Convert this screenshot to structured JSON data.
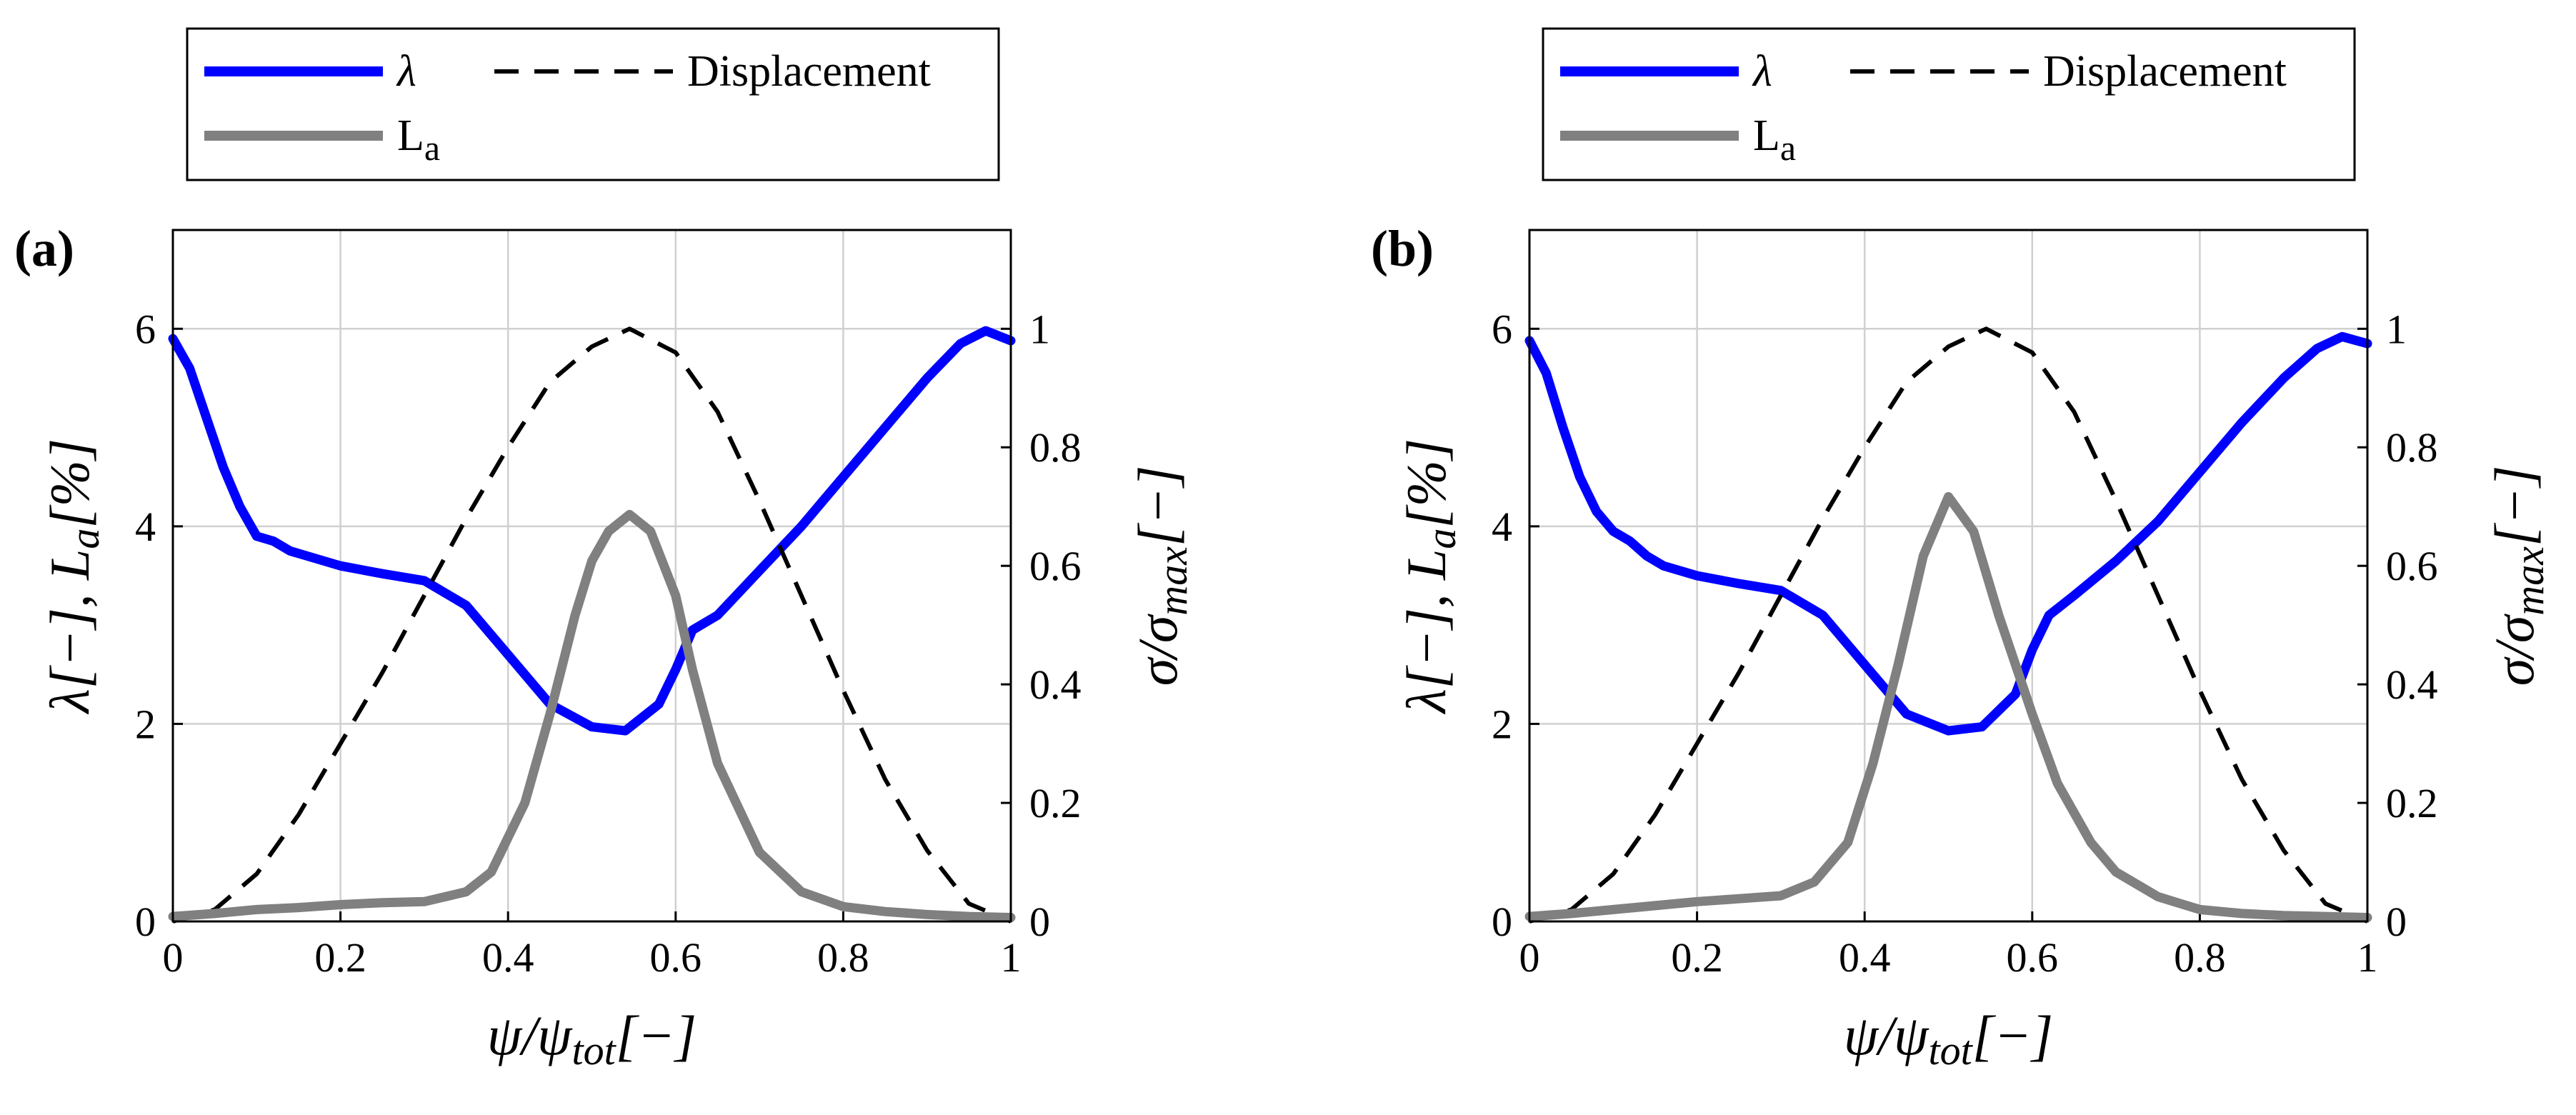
{
  "chart_data": [
    {
      "type": "line",
      "panel_label": "(a)",
      "xlabel": "ψ/ψ_tot[−]",
      "xlabel_parts": [
        "ψ/ψ",
        "tot",
        "[−]"
      ],
      "ylabel_left": "λ[−], L_a[%]",
      "ylabel_left_parts": [
        "λ[−],  L",
        "a",
        "[%]"
      ],
      "ylabel_right": "σ/σ_max[−]",
      "ylabel_right_parts": [
        "σ/σ",
        "max",
        "[−]"
      ],
      "xlim": [
        0,
        1
      ],
      "ylim_left": [
        0,
        7
      ],
      "ylim_right": [
        0,
        1.1667
      ],
      "xticks": [
        "0",
        "0.2",
        "0.4",
        "0.6",
        "0.8",
        "1"
      ],
      "yticks_left": [
        "0",
        "2",
        "4",
        "6"
      ],
      "yticks_right": [
        "0",
        "0.2",
        "0.4",
        "0.6",
        "0.8",
        "1"
      ],
      "legend": [
        {
          "name": "λ",
          "color": "#0000ff",
          "style": "solid"
        },
        {
          "name": "Displacement",
          "color": "#000000",
          "style": "dashed"
        },
        {
          "name": "L",
          "sub": "a",
          "color": "#808080",
          "style": "solid"
        }
      ],
      "series": [
        {
          "name": "λ",
          "axis": "left",
          "color": "#0000ff",
          "style": "solid",
          "x": [
            0,
            0.02,
            0.04,
            0.06,
            0.08,
            0.1,
            0.12,
            0.14,
            0.16,
            0.2,
            0.25,
            0.3,
            0.35,
            0.4,
            0.45,
            0.5,
            0.54,
            0.58,
            0.6,
            0.62,
            0.65,
            0.7,
            0.75,
            0.8,
            0.85,
            0.9,
            0.94,
            0.97,
            1.0
          ],
          "y": [
            5.9,
            5.6,
            5.1,
            4.6,
            4.2,
            3.9,
            3.85,
            3.75,
            3.7,
            3.6,
            3.52,
            3.45,
            3.2,
            2.7,
            2.2,
            1.97,
            1.93,
            2.2,
            2.55,
            2.95,
            3.1,
            3.55,
            4.0,
            4.5,
            5.0,
            5.5,
            5.85,
            5.98,
            5.88
          ]
        },
        {
          "name": "Displacement",
          "axis": "right",
          "color": "#000000",
          "style": "dashed",
          "x": [
            0,
            0.05,
            0.1,
            0.15,
            0.2,
            0.25,
            0.3,
            0.35,
            0.4,
            0.45,
            0.5,
            0.545,
            0.6,
            0.65,
            0.7,
            0.75,
            0.8,
            0.85,
            0.9,
            0.95,
            1.0
          ],
          "y": [
            0,
            0.02,
            0.08,
            0.18,
            0.3,
            0.42,
            0.55,
            0.68,
            0.8,
            0.91,
            0.97,
            1.0,
            0.96,
            0.86,
            0.71,
            0.55,
            0.39,
            0.24,
            0.12,
            0.03,
            0
          ]
        },
        {
          "name": "L_a",
          "axis": "left",
          "color": "#808080",
          "style": "solid",
          "x": [
            0,
            0.05,
            0.1,
            0.15,
            0.2,
            0.25,
            0.3,
            0.35,
            0.38,
            0.42,
            0.45,
            0.48,
            0.5,
            0.52,
            0.545,
            0.57,
            0.6,
            0.62,
            0.65,
            0.7,
            0.75,
            0.8,
            0.85,
            0.9,
            0.95,
            1.0
          ],
          "y": [
            0.05,
            0.08,
            0.12,
            0.14,
            0.17,
            0.19,
            0.2,
            0.3,
            0.5,
            1.2,
            2.1,
            3.1,
            3.65,
            3.95,
            4.12,
            3.95,
            3.3,
            2.55,
            1.6,
            0.7,
            0.3,
            0.15,
            0.1,
            0.07,
            0.05,
            0.04
          ]
        }
      ]
    },
    {
      "type": "line",
      "panel_label": "(b)",
      "xlabel": "ψ/ψ_tot[−]",
      "xlabel_parts": [
        "ψ/ψ",
        "tot",
        "[−]"
      ],
      "ylabel_left": "λ[−], L_a[%]",
      "ylabel_left_parts": [
        "λ[−],  L",
        "a",
        "[%]"
      ],
      "ylabel_right": "σ/σ_max[−]",
      "ylabel_right_parts": [
        "σ/σ",
        "max",
        "[−]"
      ],
      "xlim": [
        0,
        1
      ],
      "ylim_left": [
        0,
        7
      ],
      "ylim_right": [
        0,
        1.1667
      ],
      "xticks": [
        "0",
        "0.2",
        "0.4",
        "0.6",
        "0.8",
        "1"
      ],
      "yticks_left": [
        "0",
        "2",
        "4",
        "6"
      ],
      "yticks_right": [
        "0",
        "0.2",
        "0.4",
        "0.6",
        "0.8",
        "1"
      ],
      "legend": [
        {
          "name": "λ",
          "color": "#0000ff",
          "style": "solid"
        },
        {
          "name": "Displacement",
          "color": "#000000",
          "style": "dashed"
        },
        {
          "name": "L",
          "sub": "a",
          "color": "#808080",
          "style": "solid"
        }
      ],
      "series": [
        {
          "name": "λ",
          "axis": "left",
          "color": "#0000ff",
          "style": "solid",
          "x": [
            0,
            0.02,
            0.04,
            0.06,
            0.08,
            0.1,
            0.12,
            0.14,
            0.16,
            0.2,
            0.25,
            0.3,
            0.35,
            0.4,
            0.45,
            0.5,
            0.54,
            0.58,
            0.6,
            0.62,
            0.65,
            0.7,
            0.75,
            0.8,
            0.85,
            0.9,
            0.94,
            0.97,
            1.0
          ],
          "y": [
            5.88,
            5.55,
            5.0,
            4.5,
            4.15,
            3.95,
            3.85,
            3.7,
            3.6,
            3.5,
            3.42,
            3.35,
            3.1,
            2.6,
            2.1,
            1.93,
            1.97,
            2.3,
            2.75,
            3.1,
            3.3,
            3.65,
            4.05,
            4.55,
            5.05,
            5.5,
            5.8,
            5.92,
            5.85
          ]
        },
        {
          "name": "Displacement",
          "axis": "right",
          "color": "#000000",
          "style": "dashed",
          "x": [
            0,
            0.05,
            0.1,
            0.15,
            0.2,
            0.25,
            0.3,
            0.35,
            0.4,
            0.45,
            0.5,
            0.545,
            0.6,
            0.65,
            0.7,
            0.75,
            0.8,
            0.85,
            0.9,
            0.95,
            1.0
          ],
          "y": [
            0,
            0.02,
            0.08,
            0.18,
            0.3,
            0.42,
            0.55,
            0.68,
            0.8,
            0.91,
            0.97,
            1.0,
            0.96,
            0.86,
            0.71,
            0.55,
            0.39,
            0.24,
            0.12,
            0.03,
            0
          ]
        },
        {
          "name": "L_a",
          "axis": "left",
          "color": "#808080",
          "style": "solid",
          "x": [
            0,
            0.05,
            0.1,
            0.15,
            0.2,
            0.25,
            0.3,
            0.34,
            0.38,
            0.41,
            0.44,
            0.47,
            0.5,
            0.53,
            0.56,
            0.6,
            0.63,
            0.67,
            0.7,
            0.75,
            0.8,
            0.85,
            0.9,
            0.95,
            1.0
          ],
          "y": [
            0.05,
            0.08,
            0.12,
            0.16,
            0.2,
            0.23,
            0.26,
            0.4,
            0.8,
            1.6,
            2.6,
            3.7,
            4.3,
            3.95,
            3.1,
            2.1,
            1.4,
            0.8,
            0.5,
            0.25,
            0.12,
            0.08,
            0.06,
            0.05,
            0.04
          ]
        }
      ]
    }
  ]
}
